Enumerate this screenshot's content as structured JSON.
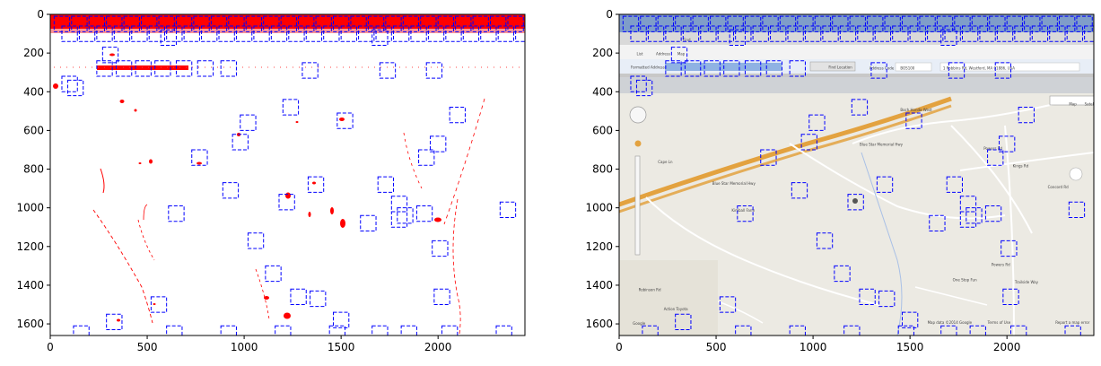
{
  "colors": {
    "box": "#0000ff",
    "mask": "#ff0000",
    "map_background": "#eceae3",
    "map_road": "#ffffff",
    "highway": "#e3a23f",
    "toolbar": "#7f9dc9"
  },
  "chart_data": [
    {
      "type": "heatmap",
      "content": "binary difference mask with red blobs on white, annotated with blue dashed detection boxes",
      "xlim": [
        0,
        2448
      ],
      "ylim": [
        1660,
        0
      ],
      "xticks": [
        0,
        500,
        1000,
        1500,
        2000
      ],
      "yticks": [
        0,
        200,
        400,
        600,
        800,
        1000,
        1200,
        1400,
        1600
      ],
      "grid": false,
      "legend": "none"
    },
    {
      "type": "heatmap",
      "content": "screenshot of a map web application (toolbar, address bar, street map) annotated with blue dashed detection boxes",
      "xlim": [
        0,
        2448
      ],
      "ylim": [
        1660,
        0
      ],
      "xticks": [
        0,
        500,
        1000,
        1500,
        2000
      ],
      "yticks": [
        0,
        200,
        400,
        600,
        800,
        1000,
        1200,
        1400,
        1600
      ],
      "grid": false,
      "legend": "none"
    }
  ],
  "boxes": [
    {
      "x": 560,
      "y": 1500
    },
    {
      "x": 330,
      "y": 1590
    },
    {
      "x": 160,
      "y": 1650
    },
    {
      "x": 640,
      "y": 1650
    },
    {
      "x": 920,
      "y": 1650
    },
    {
      "x": 1500,
      "y": 1580
    },
    {
      "x": 1480,
      "y": 1650
    },
    {
      "x": 1380,
      "y": 1470
    },
    {
      "x": 1280,
      "y": 1460
    },
    {
      "x": 1150,
      "y": 1340
    },
    {
      "x": 1060,
      "y": 1170
    },
    {
      "x": 930,
      "y": 910
    },
    {
      "x": 650,
      "y": 1030
    },
    {
      "x": 770,
      "y": 740
    },
    {
      "x": 980,
      "y": 660
    },
    {
      "x": 1240,
      "y": 480
    },
    {
      "x": 1520,
      "y": 550
    },
    {
      "x": 1220,
      "y": 970
    },
    {
      "x": 1370,
      "y": 880
    },
    {
      "x": 1640,
      "y": 1080
    },
    {
      "x": 1730,
      "y": 880
    },
    {
      "x": 1800,
      "y": 980
    },
    {
      "x": 1800,
      "y": 1060
    },
    {
      "x": 1930,
      "y": 1030
    },
    {
      "x": 1940,
      "y": 740
    },
    {
      "x": 2000,
      "y": 670
    },
    {
      "x": 2010,
      "y": 1210
    },
    {
      "x": 2020,
      "y": 1460
    },
    {
      "x": 2100,
      "y": 520
    },
    {
      "x": 2360,
      "y": 1010
    },
    {
      "x": 2340,
      "y": 1650
    },
    {
      "x": 2060,
      "y": 1650
    },
    {
      "x": 1850,
      "y": 1650
    },
    {
      "x": 1700,
      "y": 1650
    },
    {
      "x": 1200,
      "y": 1650
    },
    {
      "x": 100,
      "y": 360
    },
    {
      "x": 130,
      "y": 380
    },
    {
      "x": 310,
      "y": 210
    },
    {
      "x": 280,
      "y": 280
    },
    {
      "x": 380,
      "y": 280
    },
    {
      "x": 480,
      "y": 280
    },
    {
      "x": 580,
      "y": 280
    },
    {
      "x": 690,
      "y": 280
    },
    {
      "x": 800,
      "y": 280
    },
    {
      "x": 920,
      "y": 280
    },
    {
      "x": 1340,
      "y": 290
    },
    {
      "x": 1740,
      "y": 290
    },
    {
      "x": 1980,
      "y": 290
    },
    {
      "x": 610,
      "y": 120
    },
    {
      "x": 1700,
      "y": 120
    },
    {
      "x": 1020,
      "y": 560
    },
    {
      "x": 1830,
      "y": 1040
    }
  ],
  "toolbar_boxes_x": [
    60,
    150,
    240,
    330,
    420,
    510,
    600,
    690,
    780,
    870,
    960,
    1050,
    1140,
    1230,
    1320,
    1410,
    1500,
    1590,
    1680,
    1770,
    1860,
    1950,
    2040,
    2130,
    2220,
    2310,
    2400
  ],
  "map_labels": [
    {
      "text": "Find",
      "x": 330,
      "y": 140
    },
    {
      "text": "List",
      "x": 90,
      "y": 210
    },
    {
      "text": "Address",
      "x": 190,
      "y": 210
    },
    {
      "text": "Map",
      "x": 300,
      "y": 210
    },
    {
      "text": "Formatted Address",
      "x": 60,
      "y": 280
    },
    {
      "text": "Find Location",
      "x": 1080,
      "y": 280
    },
    {
      "text": "Address Code",
      "x": 1290,
      "y": 285
    },
    {
      "text": "BOS100",
      "x": 1450,
      "y": 285
    },
    {
      "text": "1 Robbins Rd, Westford, MA 01886, USA",
      "x": 1670,
      "y": 285
    },
    {
      "text": "Map",
      "x": 2320,
      "y": 470
    },
    {
      "text": "Satellite",
      "x": 2400,
      "y": 470
    },
    {
      "text": "Boch Honda West",
      "x": 1450,
      "y": 500
    },
    {
      "text": "Blue Star Memorial Hwy",
      "x": 1240,
      "y": 680
    },
    {
      "text": "Blue Star Memorial Hwy",
      "x": 480,
      "y": 880
    },
    {
      "text": "Concord Rd",
      "x": 2210,
      "y": 900
    },
    {
      "text": "Kimball Farm",
      "x": 580,
      "y": 1020
    },
    {
      "text": "One Stop Fun",
      "x": 1720,
      "y": 1380
    },
    {
      "text": "Action Toyota",
      "x": 230,
      "y": 1530
    },
    {
      "text": "Google",
      "x": 70,
      "y": 1605
    },
    {
      "text": "Map data ©2014 Google",
      "x": 1590,
      "y": 1600
    },
    {
      "text": "Terms of Use",
      "x": 1900,
      "y": 1600
    },
    {
      "text": "Report a map error",
      "x": 2250,
      "y": 1600
    },
    {
      "text": "Powers Rd",
      "x": 1880,
      "y": 700
    },
    {
      "text": "Powers Rd",
      "x": 1920,
      "y": 1300
    },
    {
      "text": "Cape Ln",
      "x": 200,
      "y": 770
    },
    {
      "text": "Robinson Rd",
      "x": 100,
      "y": 1430
    },
    {
      "text": "Trailside Way",
      "x": 2040,
      "y": 1390
    },
    {
      "text": "Kings Rd",
      "x": 2030,
      "y": 790
    }
  ]
}
